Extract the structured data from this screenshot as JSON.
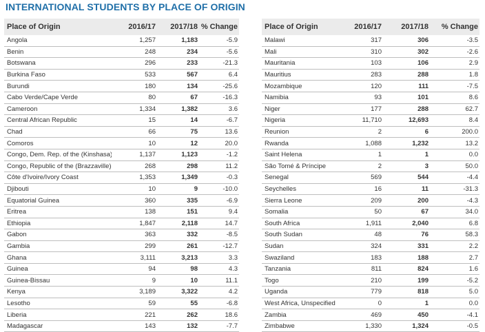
{
  "title": "INTERNATIONAL STUDENTS BY PLACE OF ORIGIN",
  "headers": {
    "place": "Place of Origin",
    "y1": "2016/17",
    "y2": "2017/18",
    "change": "% Change"
  },
  "left_rows": [
    [
      "Angola",
      "1,257",
      "1,183",
      "-5.9"
    ],
    [
      "Benin",
      "248",
      "234",
      "-5.6"
    ],
    [
      "Botswana",
      "296",
      "233",
      "-21.3"
    ],
    [
      "Burkina Faso",
      "533",
      "567",
      "6.4"
    ],
    [
      "Burundi",
      "180",
      "134",
      "-25.6"
    ],
    [
      "Cabo Verde/Cape Verde",
      "80",
      "67",
      "-16.3"
    ],
    [
      "Cameroon",
      "1,334",
      "1,382",
      "3.6"
    ],
    [
      "Central African Republic",
      "15",
      "14",
      "-6.7"
    ],
    [
      "Chad",
      "66",
      "75",
      "13.6"
    ],
    [
      "Comoros",
      "10",
      "12",
      "20.0"
    ],
    [
      "Congo, Dem. Rep. of the (Kinshasa)",
      "1,137",
      "1,123",
      "-1.2"
    ],
    [
      "Congo, Republic of the (Brazzaville)",
      "268",
      "298",
      "11.2"
    ],
    [
      "Côte d'Ivoire/Ivory Coast",
      "1,353",
      "1,349",
      "-0.3"
    ],
    [
      "Djibouti",
      "10",
      "9",
      "-10.0"
    ],
    [
      "Equatorial Guinea",
      "360",
      "335",
      "-6.9"
    ],
    [
      "Eritrea",
      "138",
      "151",
      "9.4"
    ],
    [
      "Ethiopia",
      "1,847",
      "2,118",
      "14.7"
    ],
    [
      "Gabon",
      "363",
      "332",
      "-8.5"
    ],
    [
      "Gambia",
      "299",
      "261",
      "-12.7"
    ],
    [
      "Ghana",
      "3,111",
      "3,213",
      "3.3"
    ],
    [
      "Guinea",
      "94",
      "98",
      "4.3"
    ],
    [
      "Guinea-Bissau",
      "9",
      "10",
      "11.1"
    ],
    [
      "Kenya",
      "3,189",
      "3,322",
      "4.2"
    ],
    [
      "Lesotho",
      "59",
      "55",
      "-6.8"
    ],
    [
      "Liberia",
      "221",
      "262",
      "18.6"
    ],
    [
      "Madagascar",
      "143",
      "132",
      "-7.7"
    ]
  ],
  "right_rows": [
    [
      "Malawi",
      "317",
      "306",
      "-3.5"
    ],
    [
      "Mali",
      "310",
      "302",
      "-2.6"
    ],
    [
      "Mauritania",
      "103",
      "106",
      "2.9"
    ],
    [
      "Mauritius",
      "283",
      "288",
      "1.8"
    ],
    [
      "Mozambique",
      "120",
      "111",
      "-7.5"
    ],
    [
      "Namibia",
      "93",
      "101",
      "8.6"
    ],
    [
      "Niger",
      "177",
      "288",
      "62.7"
    ],
    [
      "Nigeria",
      "11,710",
      "12,693",
      "8.4"
    ],
    [
      "Reunion",
      "2",
      "6",
      "200.0"
    ],
    [
      "Rwanda",
      "1,088",
      "1,232",
      "13.2"
    ],
    [
      "Saint Helena",
      "1",
      "1",
      "0.0"
    ],
    [
      "São Tomé & Príncipe",
      "2",
      "3",
      "50.0"
    ],
    [
      "Senegal",
      "569",
      "544",
      "-4.4"
    ],
    [
      "Seychelles",
      "16",
      "11",
      "-31.3"
    ],
    [
      "Sierra Leone",
      "209",
      "200",
      "-4.3"
    ],
    [
      "Somalia",
      "50",
      "67",
      "34.0"
    ],
    [
      "South Africa",
      "1,911",
      "2,040",
      "6.8"
    ],
    [
      "South Sudan",
      "48",
      "76",
      "58.3"
    ],
    [
      "Sudan",
      "324",
      "331",
      "2.2"
    ],
    [
      "Swaziland",
      "183",
      "188",
      "2.7"
    ],
    [
      "Tanzania",
      "811",
      "824",
      "1.6"
    ],
    [
      "Togo",
      "210",
      "199",
      "-5.2"
    ],
    [
      "Uganda",
      "779",
      "818",
      "5.0"
    ],
    [
      "West Africa, Unspecified",
      "0",
      "1",
      "0.0"
    ],
    [
      "Zambia",
      "469",
      "450",
      "-4.1"
    ],
    [
      "Zimbabwe",
      "1,330",
      "1,324",
      "-0.5"
    ]
  ]
}
